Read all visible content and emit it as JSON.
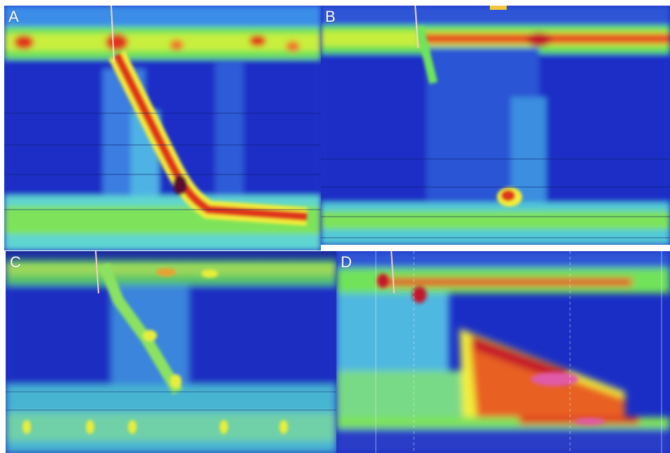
{
  "panels": [
    {
      "label": "A"
    },
    {
      "label": "B"
    },
    {
      "label": "C"
    },
    {
      "label": "D"
    }
  ],
  "colors": {
    "background_blue": "#1a2fc8",
    "deep_blue": "#0b1a9e",
    "cyan": "#36c9e6",
    "green": "#5ee05a",
    "yellow": "#f2ee3a",
    "red": "#e0301c",
    "magenta": "#d6458a"
  }
}
